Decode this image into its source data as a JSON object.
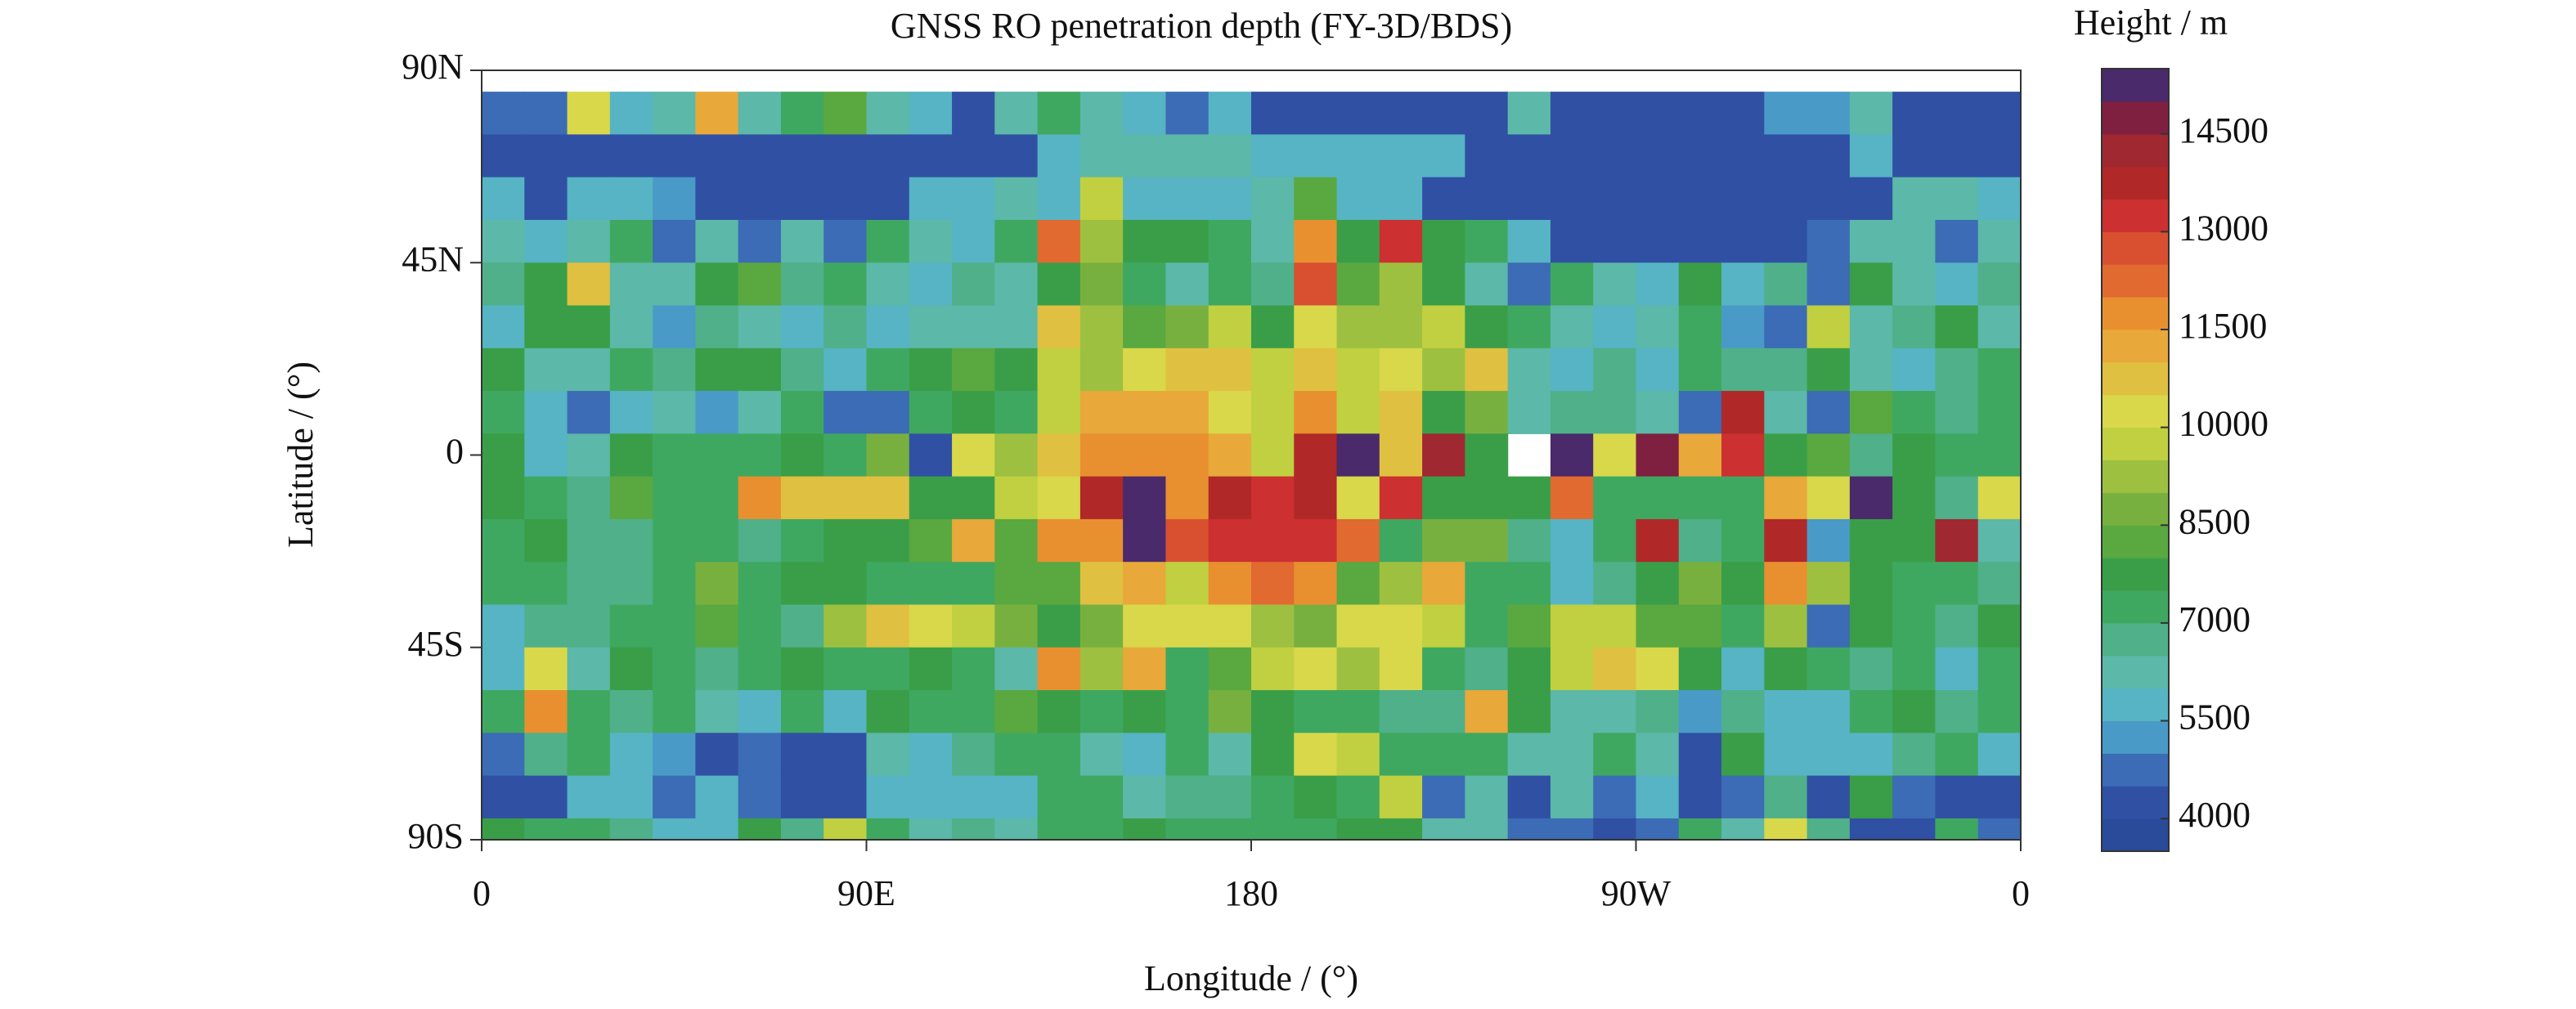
{
  "chart_data": {
    "type": "heatmap",
    "title": "GNSS RO penetration depth (FY-3D/BDS)",
    "x_label": "Longitude / (°)",
    "y_label": "Latitude / (°)",
    "xlim": [
      0,
      360
    ],
    "xticks": [
      0,
      {
        "value": 90,
        "label": "90E"
      },
      180,
      {
        "value": 270,
        "label": "90W"
      },
      {
        "value": 360,
        "label": "0"
      }
    ],
    "ylim": [
      -90,
      90
    ],
    "yticks": [
      {
        "value": 90,
        "label": "90N"
      },
      {
        "value": 45,
        "label": "45N"
      },
      0,
      {
        "value": -45,
        "label": "45S"
      },
      {
        "value": -90,
        "label": "90S"
      }
    ],
    "x_bins": [
      0,
      10,
      20,
      30,
      40,
      50,
      60,
      70,
      80,
      90,
      100,
      110,
      120,
      130,
      140,
      150,
      160,
      170,
      180,
      190,
      200,
      210,
      220,
      230,
      240,
      250,
      260,
      270,
      280,
      290,
      300,
      310,
      320,
      330,
      340,
      350,
      360
    ],
    "y_bins": [
      85,
      75,
      65,
      55,
      45,
      35,
      25,
      15,
      5,
      -5,
      -15,
      -25,
      -35,
      -45,
      -55,
      -65,
      -75,
      -85,
      -90
    ],
    "z": [
      [
        4500,
        4500,
        10000,
        5500,
        6000,
        11000,
        6000,
        7000,
        8000,
        6000,
        5500,
        4000,
        6000,
        7000,
        6000,
        5500,
        4500,
        5500,
        4000,
        4000,
        4000,
        4000,
        4000,
        4000,
        6000,
        4000,
        4000,
        4000,
        4000,
        4000,
        5000,
        5000,
        6000,
        4000,
        4000,
        4000
      ],
      [
        4000,
        4000,
        4000,
        4000,
        4000,
        4000,
        4000,
        4000,
        4000,
        4000,
        4000,
        4000,
        4000,
        5500,
        6000,
        6000,
        6000,
        6000,
        5500,
        5500,
        5500,
        5500,
        5500,
        4000,
        4000,
        4000,
        4000,
        4000,
        4000,
        4000,
        4000,
        4000,
        5500,
        4000,
        4000,
        4000
      ],
      [
        5500,
        4000,
        5500,
        5500,
        5000,
        4000,
        4000,
        4000,
        4000,
        4000,
        5500,
        5500,
        6000,
        5500,
        9500,
        5500,
        5500,
        5500,
        6000,
        8000,
        5500,
        5500,
        4000,
        4000,
        4000,
        4000,
        4000,
        4000,
        4000,
        4000,
        4000,
        4000,
        4000,
        6000,
        6000,
        5500
      ],
      [
        6000,
        5500,
        6000,
        7000,
        4500,
        6000,
        4500,
        6000,
        4500,
        7000,
        6000,
        5500,
        7000,
        12000,
        9000,
        7500,
        7500,
        7000,
        6000,
        11500,
        7500,
        13000,
        7500,
        7000,
        5500,
        4000,
        4000,
        4000,
        4000,
        4000,
        4000,
        4500,
        6000,
        6000,
        4500,
        6000
      ],
      [
        6500,
        7500,
        10500,
        6000,
        6000,
        7500,
        8000,
        6500,
        7000,
        6000,
        5500,
        6500,
        6000,
        7500,
        8500,
        7000,
        6000,
        7000,
        6500,
        12500,
        8000,
        9000,
        7500,
        6000,
        4500,
        7000,
        6000,
        5500,
        7500,
        5500,
        6500,
        4500,
        7500,
        6000,
        5500,
        6500
      ],
      [
        5500,
        7500,
        7500,
        6000,
        5000,
        6500,
        6000,
        5500,
        6500,
        5500,
        6000,
        6000,
        6000,
        10500,
        9000,
        8000,
        8500,
        9500,
        7500,
        10000,
        9000,
        9000,
        9500,
        7500,
        7000,
        6000,
        5500,
        6000,
        7000,
        5000,
        4500,
        9500,
        6000,
        6500,
        7500,
        6000
      ],
      [
        7500,
        6000,
        6000,
        7000,
        6500,
        7500,
        7500,
        6500,
        5500,
        7000,
        7500,
        8000,
        7500,
        9500,
        9000,
        10000,
        10500,
        10500,
        9500,
        10500,
        9500,
        10000,
        9000,
        10500,
        6000,
        5500,
        6500,
        5500,
        7000,
        6500,
        6500,
        7500,
        6000,
        5500,
        6500,
        7000
      ],
      [
        7000,
        5500,
        4500,
        5500,
        6000,
        5000,
        6000,
        7000,
        4500,
        4500,
        7000,
        7500,
        7000,
        9500,
        11000,
        11000,
        11000,
        10000,
        9500,
        11500,
        9500,
        10500,
        7500,
        8500,
        6000,
        6500,
        6500,
        6000,
        4500,
        13500,
        6000,
        4500,
        8000,
        7000,
        6500,
        7000
      ],
      [
        7500,
        5500,
        6000,
        7500,
        7000,
        7000,
        7000,
        7500,
        7000,
        8500,
        4000,
        10000,
        9000,
        10500,
        11500,
        11500,
        11500,
        11000,
        9500,
        13500,
        15000,
        10500,
        14000,
        7500,
        null,
        15000,
        10000,
        14500,
        11000,
        13000,
        7500,
        8000,
        6500,
        7500,
        7000,
        7000
      ],
      [
        7500,
        7000,
        6500,
        8000,
        7000,
        7000,
        11500,
        10500,
        10500,
        10500,
        7500,
        7500,
        9500,
        10000,
        13500,
        15000,
        11500,
        13500,
        13000,
        13500,
        10000,
        13000,
        7500,
        7500,
        7500,
        12000,
        7000,
        7000,
        7000,
        7000,
        11000,
        10000,
        15000,
        7500,
        6500,
        10000
      ],
      [
        7000,
        7500,
        6500,
        6500,
        7000,
        7000,
        6500,
        7000,
        7500,
        7500,
        8000,
        11000,
        8000,
        11500,
        11500,
        15000,
        12500,
        13000,
        13000,
        13000,
        12000,
        7000,
        8500,
        8500,
        6500,
        5500,
        7000,
        13500,
        6500,
        7000,
        13500,
        5000,
        7500,
        7500,
        14000,
        6000
      ],
      [
        7000,
        7000,
        6500,
        6500,
        7000,
        8500,
        7000,
        7500,
        7500,
        7000,
        7000,
        7000,
        8000,
        8000,
        10500,
        11000,
        9500,
        11500,
        12000,
        11500,
        8000,
        9000,
        11000,
        7000,
        7000,
        5500,
        6500,
        7500,
        8500,
        7500,
        11500,
        9000,
        7500,
        7000,
        7000,
        6500
      ],
      [
        5500,
        6500,
        6500,
        7000,
        7000,
        8000,
        7000,
        6500,
        9000,
        10500,
        10000,
        9500,
        8500,
        7500,
        8500,
        10000,
        10000,
        10000,
        9000,
        8500,
        10000,
        10000,
        9500,
        7000,
        8000,
        9500,
        9500,
        8000,
        8000,
        7000,
        9000,
        4500,
        7500,
        7000,
        6500,
        7500
      ],
      [
        5500,
        10000,
        6000,
        7500,
        7000,
        6500,
        7000,
        7500,
        7000,
        7000,
        7500,
        7000,
        6000,
        11500,
        9000,
        11000,
        7000,
        8000,
        9500,
        10000,
        9000,
        10000,
        7000,
        6500,
        7500,
        9500,
        10500,
        10000,
        7500,
        5500,
        7500,
        7000,
        6500,
        7000,
        5500,
        7000
      ],
      [
        7000,
        11500,
        7000,
        6500,
        7000,
        6000,
        5500,
        7000,
        5500,
        7500,
        7000,
        7000,
        8000,
        7500,
        7000,
        7500,
        7000,
        8500,
        7500,
        7000,
        7000,
        6500,
        6500,
        11000,
        7500,
        6000,
        6000,
        6500,
        5000,
        6500,
        5500,
        5500,
        7000,
        7500,
        6500,
        7000
      ],
      [
        4500,
        6500,
        7000,
        5500,
        5000,
        4000,
        4500,
        4000,
        4000,
        6000,
        5500,
        6500,
        7000,
        7000,
        6000,
        5500,
        7000,
        6000,
        7500,
        10000,
        9500,
        7000,
        7000,
        7000,
        6000,
        6000,
        7000,
        6000,
        4000,
        7500,
        5500,
        5500,
        5500,
        6500,
        7000,
        5500
      ],
      [
        4000,
        4000,
        5500,
        5500,
        4500,
        5500,
        4500,
        4000,
        4000,
        5500,
        5500,
        5500,
        5500,
        7000,
        7000,
        6000,
        6500,
        6500,
        7000,
        7500,
        7000,
        9500,
        4500,
        6000,
        4000,
        6000,
        4500,
        5500,
        4000,
        4500,
        6500,
        4000,
        7500,
        4500,
        4000,
        4000
      ],
      [
        7500,
        7000,
        7000,
        6500,
        5500,
        5500,
        7500,
        6500,
        9500,
        7000,
        6000,
        6500,
        6000,
        7000,
        7000,
        7500,
        7000,
        7000,
        7000,
        7000,
        7500,
        7500,
        6000,
        6000,
        4500,
        4500,
        4000,
        4500,
        7000,
        6000,
        10000,
        6500,
        4000,
        4000,
        7000,
        4500
      ]
    ],
    "colorbar": {
      "title": "Height / m",
      "lim": [
        3500,
        15500
      ],
      "ticks": [
        4000,
        5500,
        7000,
        8500,
        10000,
        11500,
        13000,
        14500
      ],
      "colors": [
        "#2a4a9a",
        "#3050a4",
        "#3b6cb5",
        "#4a9ac8",
        "#56b4c4",
        "#5cb8a8",
        "#4fb08a",
        "#3fa860",
        "#3a9e48",
        "#5aa840",
        "#78b040",
        "#9ec040",
        "#c0d040",
        "#d8d84a",
        "#e0c040",
        "#e8a83a",
        "#e89030",
        "#e06a30",
        "#d85030",
        "#cc3030",
        "#b02828",
        "#a02830",
        "#802040",
        "#4a2a6a"
      ]
    }
  }
}
